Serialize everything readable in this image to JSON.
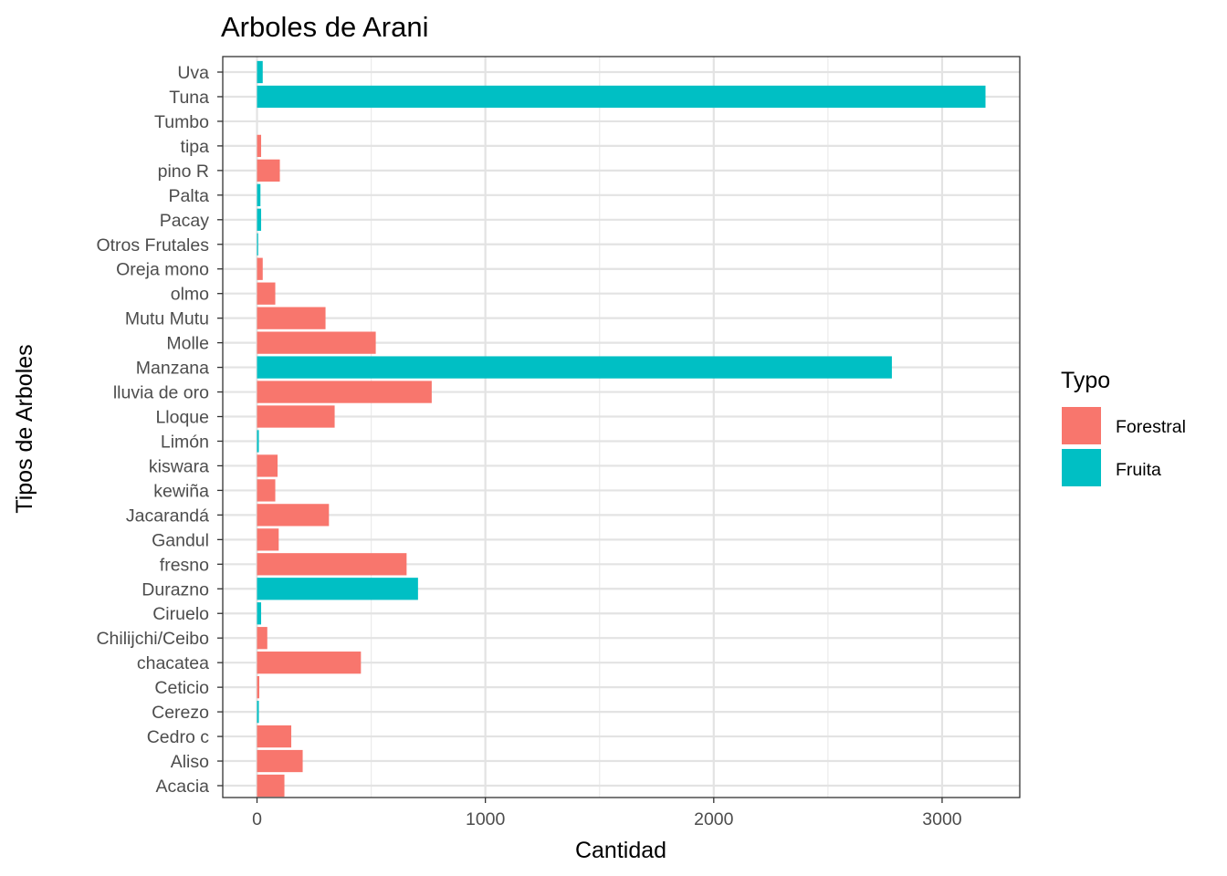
{
  "chart_data": {
    "type": "bar",
    "orientation": "horizontal",
    "title": "Arboles de Arani",
    "xlabel": "Cantidad",
    "ylabel": "Tipos de Arboles",
    "xlim": [
      -150,
      3340
    ],
    "xticks": [
      0,
      1000,
      2000,
      3000
    ],
    "xtick_labels": [
      "0",
      "1000",
      "2000",
      "3000"
    ],
    "grid": true,
    "legend": {
      "title": "Typo",
      "placement": "right",
      "entries": [
        {
          "name": "Forestral",
          "color": "#F8766D"
        },
        {
          "name": "Fruita",
          "color": "#00BFC4"
        }
      ]
    },
    "categories": [
      "Uva",
      "Tuna",
      "Tumbo",
      "tipa",
      "pino R",
      "Palta",
      "Pacay",
      "Otros Frutales",
      "Oreja mono",
      "olmo",
      "Mutu Mutu",
      "Molle",
      "Manzana",
      "lluvia de oro",
      "Lloque",
      "Limón",
      "kiswara",
      "kewiña",
      "Jacarandá",
      "Gandul",
      "fresno",
      "Durazno",
      "Ciruelo",
      "Chilijchi/Ceibo",
      "chacatea",
      "Ceticio",
      "Cerezo",
      "Cedro c",
      "Aliso",
      "Acacia"
    ],
    "values": [
      25,
      3190,
      0,
      18,
      100,
      15,
      18,
      5,
      25,
      80,
      300,
      520,
      2780,
      765,
      340,
      8,
      90,
      80,
      315,
      95,
      655,
      705,
      18,
      45,
      455,
      10,
      8,
      150,
      200,
      120
    ],
    "types": [
      "Fruita",
      "Fruita",
      "Fruita",
      "Forestral",
      "Forestral",
      "Fruita",
      "Fruita",
      "Fruita",
      "Forestral",
      "Forestral",
      "Forestral",
      "Forestral",
      "Fruita",
      "Forestral",
      "Forestral",
      "Fruita",
      "Forestral",
      "Forestral",
      "Forestral",
      "Forestral",
      "Forestral",
      "Fruita",
      "Fruita",
      "Forestral",
      "Forestral",
      "Forestral",
      "Fruita",
      "Forestral",
      "Forestral",
      "Forestral"
    ]
  }
}
